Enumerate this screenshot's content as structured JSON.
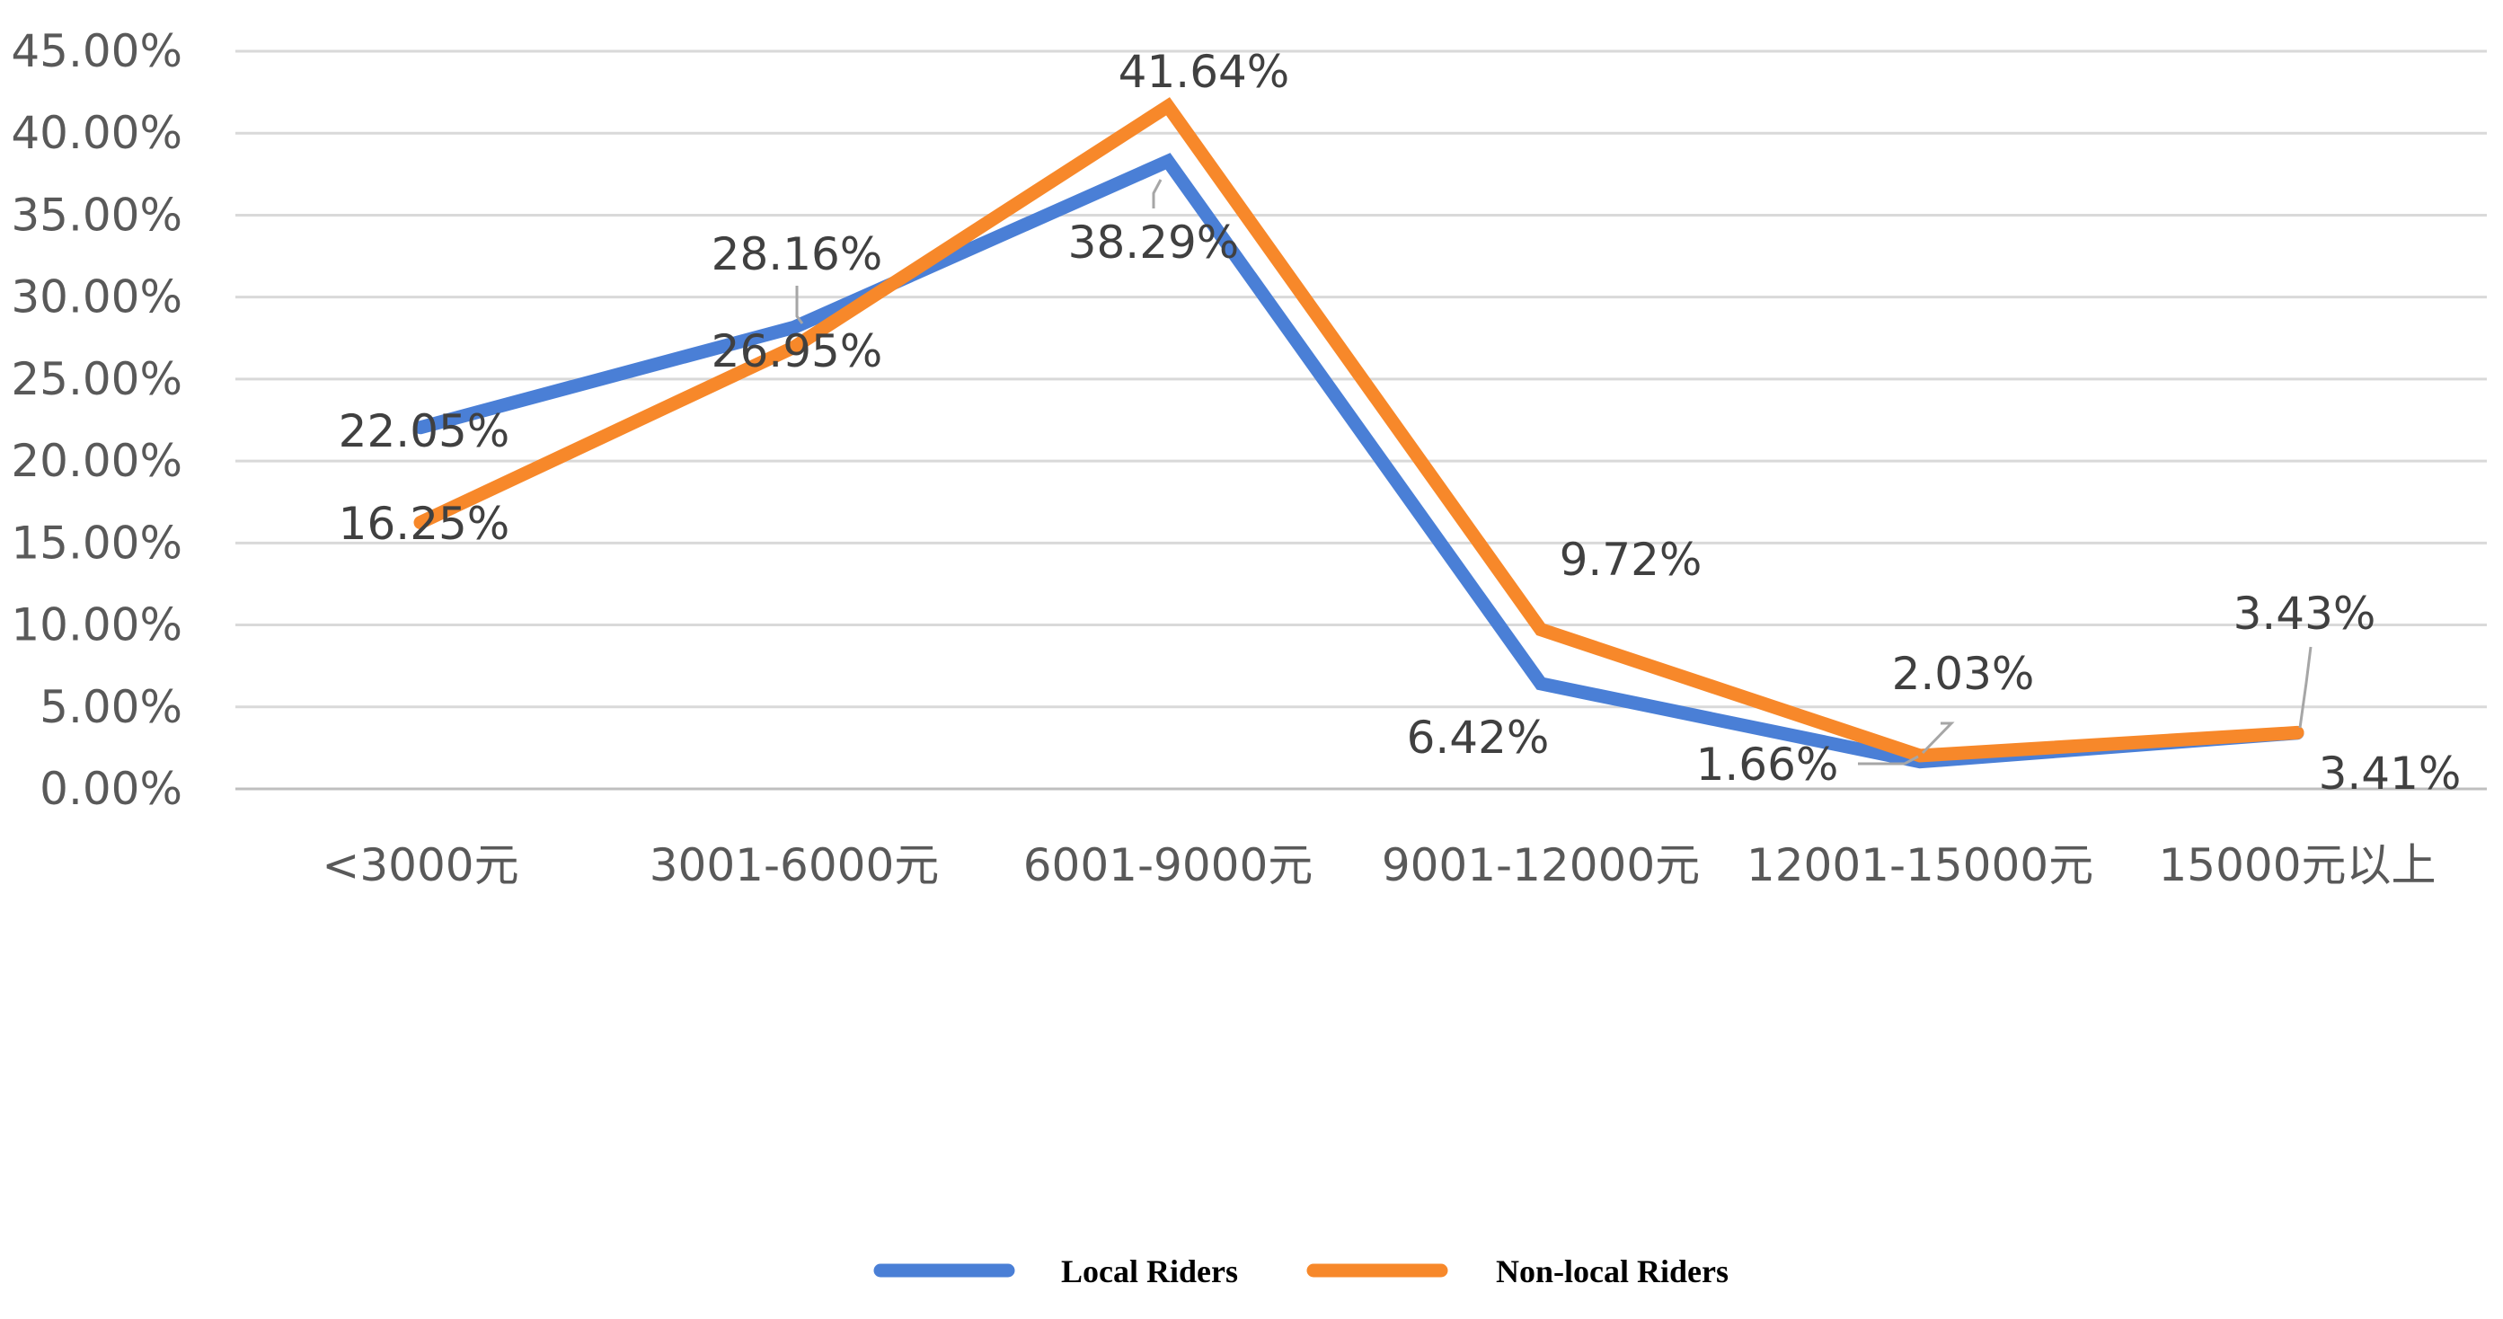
{
  "chart_data": {
    "type": "line",
    "categories": [
      "<3000元",
      "3001-6000元",
      "6001-9000元",
      "9001-12000元",
      "12001-15000元",
      "15000元以上"
    ],
    "series": [
      {
        "name": "Local Riders",
        "color": "#4a7fd6",
        "values": [
          22.05,
          28.16,
          38.29,
          6.42,
          1.66,
          3.41
        ],
        "labels": [
          "22.05%",
          "28.16%",
          "38.29%",
          "6.42%",
          "1.66%",
          "3.41%"
        ]
      },
      {
        "name": "Non-local Riders",
        "color": "#f7882a",
        "values": [
          16.25,
          26.95,
          41.64,
          9.72,
          2.03,
          3.43
        ],
        "labels": [
          "16.25%",
          "26.95%",
          "41.64%",
          "9.72%",
          "2.03%",
          "3.43%"
        ]
      }
    ],
    "ylim": [
      0,
      45
    ],
    "y_ticks": [
      "0.00%",
      "5.00%",
      "10.00%",
      "15.00%",
      "20.00%",
      "25.00%",
      "30.00%",
      "35.00%",
      "40.00%",
      "45.00%"
    ],
    "y_tick_values": [
      0,
      5,
      10,
      15,
      20,
      25,
      30,
      35,
      40,
      45
    ],
    "grid": true,
    "legend_position": "bottom-center"
  }
}
